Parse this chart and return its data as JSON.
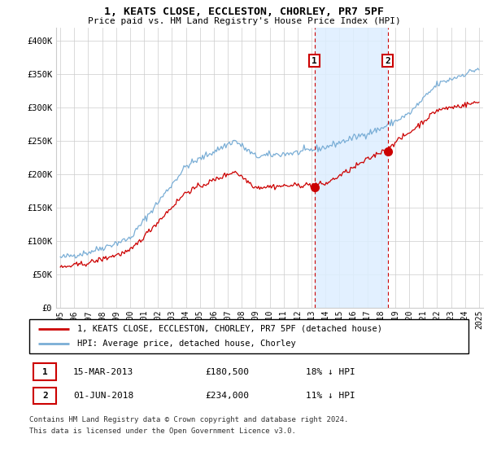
{
  "title": "1, KEATS CLOSE, ECCLESTON, CHORLEY, PR7 5PF",
  "subtitle": "Price paid vs. HM Land Registry's House Price Index (HPI)",
  "ylim": [
    0,
    420000
  ],
  "yticks": [
    0,
    50000,
    100000,
    150000,
    200000,
    250000,
    300000,
    350000,
    400000
  ],
  "ytick_labels": [
    "£0",
    "£50K",
    "£100K",
    "£150K",
    "£200K",
    "£250K",
    "£300K",
    "£350K",
    "£400K"
  ],
  "sale1_price": 180500,
  "sale2_price": 234000,
  "sale1_label": "1",
  "sale2_label": "2",
  "legend_property": "1, KEATS CLOSE, ECCLESTON, CHORLEY, PR7 5PF (detached house)",
  "legend_hpi": "HPI: Average price, detached house, Chorley",
  "footnote1": "Contains HM Land Registry data © Crown copyright and database right 2024.",
  "footnote2": "This data is licensed under the Open Government Licence v3.0.",
  "table_row1": [
    "1",
    "15-MAR-2013",
    "£180,500",
    "18% ↓ HPI"
  ],
  "table_row2": [
    "2",
    "01-JUN-2018",
    "£234,000",
    "11% ↓ HPI"
  ],
  "property_line_color": "#cc0000",
  "hpi_line_color": "#7aaed6",
  "shade_color": "#ddeeff",
  "marker_box_color": "#cc0000",
  "x_start_year": 1995,
  "x_end_year": 2025
}
